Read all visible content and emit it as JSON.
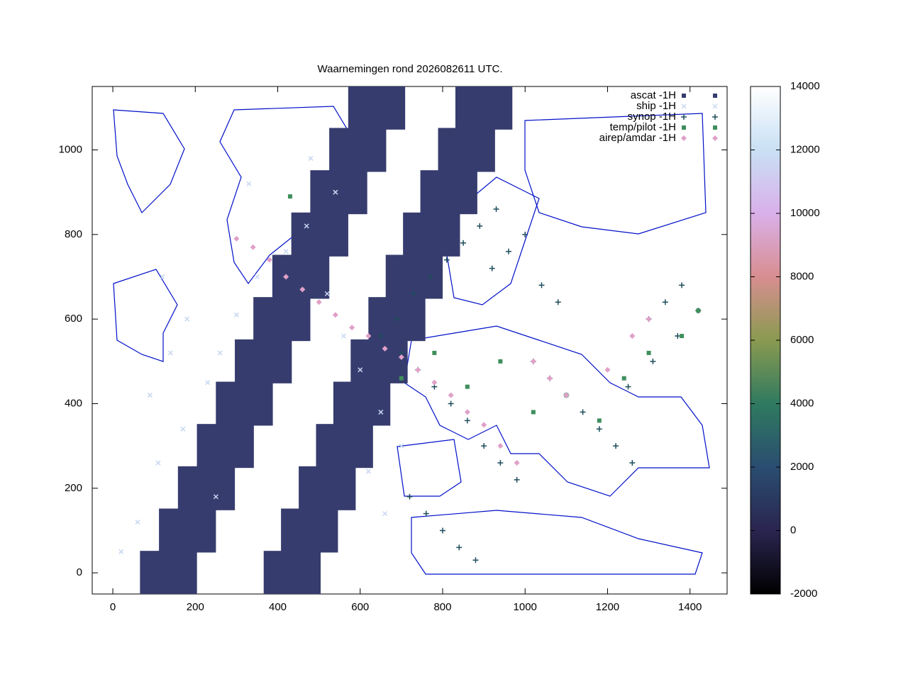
{
  "chart_data": {
    "type": "scatter",
    "title": "Waarnemingen rond 2026082611 UTC.",
    "xlim": [
      -50,
      1490
    ],
    "ylim": [
      -50,
      1150
    ],
    "xticks": [
      0,
      200,
      400,
      600,
      800,
      1000,
      1200,
      1400
    ],
    "yticks": [
      0,
      200,
      400,
      600,
      800,
      1000
    ],
    "cblim": [
      -2000,
      14000
    ],
    "cbticks": [
      -2000,
      0,
      2000,
      4000,
      6000,
      8000,
      10000,
      12000,
      14000
    ],
    "legend": "top-right",
    "series": [
      {
        "name": "ascat -1H",
        "marker": "block",
        "color": "#363c6e",
        "x": [
          90,
          135,
          180,
          136,
          181,
          226,
          182,
          227,
          272,
          228,
          273,
          318,
          274,
          319,
          364,
          320,
          365,
          410,
          365,
          410,
          455,
          411,
          456,
          501,
          457,
          502,
          547,
          503,
          548,
          593,
          549,
          594,
          639,
          595,
          640,
          685,
          390,
          435,
          480,
          432,
          477,
          522,
          475,
          520,
          565,
          517,
          562,
          607,
          559,
          604,
          649,
          601,
          646,
          691,
          644,
          689,
          734,
          686,
          731,
          776,
          728,
          773,
          818,
          770,
          815,
          860,
          813,
          858,
          903,
          855,
          900,
          945
        ],
        "y": [
          0,
          0,
          0,
          100,
          100,
          100,
          200,
          200,
          200,
          300,
          300,
          300,
          400,
          400,
          400,
          500,
          500,
          500,
          600,
          600,
          600,
          700,
          700,
          700,
          800,
          800,
          800,
          900,
          900,
          900,
          1000,
          1000,
          1000,
          1100,
          1100,
          1100,
          0,
          0,
          0,
          100,
          100,
          100,
          200,
          200,
          200,
          300,
          300,
          300,
          400,
          400,
          400,
          500,
          500,
          500,
          600,
          600,
          600,
          700,
          700,
          700,
          800,
          800,
          800,
          900,
          900,
          900,
          1000,
          1000,
          1000,
          1100,
          1100,
          1100
        ]
      },
      {
        "name": "ship -1H",
        "marker": "x",
        "color": "#c8d8f2",
        "x": [
          20,
          60,
          110,
          170,
          230,
          260,
          300,
          350,
          420,
          470,
          520,
          560,
          600,
          650,
          700,
          250,
          180,
          120,
          330,
          480,
          540,
          620,
          660,
          90,
          140
        ],
        "y": [
          50,
          120,
          260,
          340,
          450,
          520,
          610,
          700,
          760,
          820,
          660,
          560,
          480,
          380,
          300,
          180,
          600,
          700,
          920,
          980,
          900,
          240,
          140,
          420,
          520
        ]
      },
      {
        "name": "synop -1H",
        "marker": "plus",
        "color": "#1e4d5c",
        "x": [
          700,
          740,
          780,
          820,
          860,
          900,
          940,
          980,
          1020,
          1060,
          1100,
          1140,
          1180,
          1220,
          1260,
          1300,
          1340,
          1380,
          720,
          760,
          800,
          840,
          880,
          920,
          960,
          1000,
          1040,
          1080,
          650,
          690,
          730,
          770,
          810,
          850,
          890,
          930,
          1250,
          1310,
          1370,
          1420
        ],
        "y": [
          520,
          480,
          440,
          400,
          360,
          300,
          260,
          220,
          500,
          460,
          420,
          380,
          340,
          300,
          260,
          600,
          640,
          680,
          180,
          140,
          100,
          60,
          30,
          720,
          760,
          800,
          680,
          640,
          560,
          600,
          660,
          700,
          740,
          780,
          820,
          860,
          440,
          500,
          560,
          620
        ]
      },
      {
        "name": "temp/pilot -1H",
        "marker": "square",
        "color": "#3f8f5c",
        "x": [
          430,
          700,
          780,
          860,
          940,
          1020,
          1100,
          1180,
          1240,
          1300,
          1380,
          1420
        ],
        "y": [
          890,
          460,
          520,
          440,
          500,
          380,
          420,
          360,
          460,
          520,
          560,
          620
        ]
      },
      {
        "name": "airep/amdar -1H",
        "marker": "diamond",
        "color": "#e0a0c8",
        "x": [
          300,
          340,
          380,
          420,
          460,
          500,
          540,
          580,
          620,
          660,
          700,
          740,
          780,
          820,
          860,
          900,
          940,
          980,
          1020,
          1060,
          1100,
          1200,
          1260,
          1300
        ],
        "y": [
          790,
          770,
          740,
          700,
          670,
          640,
          610,
          580,
          560,
          530,
          510,
          480,
          450,
          420,
          380,
          350,
          300,
          260,
          500,
          460,
          420,
          480,
          560,
          600
        ]
      }
    ]
  }
}
